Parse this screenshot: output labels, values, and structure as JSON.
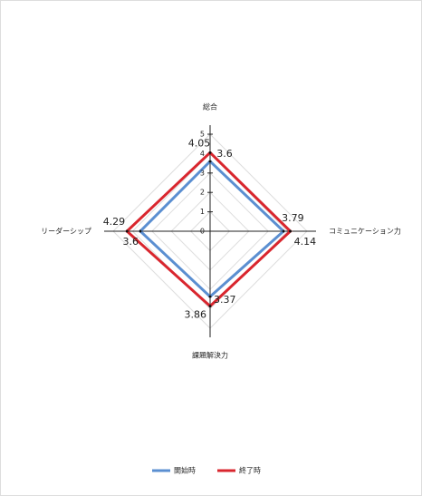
{
  "chart_data": {
    "type": "radar",
    "categories": [
      "総合",
      "コミュニケーション力",
      "課題解決力",
      "リーダーシップ"
    ],
    "series": [
      {
        "name": "開始時",
        "color": "#5b8fd1",
        "values": [
          3.6,
          3.79,
          3.37,
          3.6
        ]
      },
      {
        "name": "終了時",
        "color": "#d9262e",
        "values": [
          4.05,
          4.14,
          3.86,
          4.29
        ]
      }
    ],
    "ylim": [
      0,
      5
    ],
    "yticks": [
      0,
      1,
      2,
      3,
      4,
      5
    ],
    "grid": true,
    "legend": "bottom"
  }
}
